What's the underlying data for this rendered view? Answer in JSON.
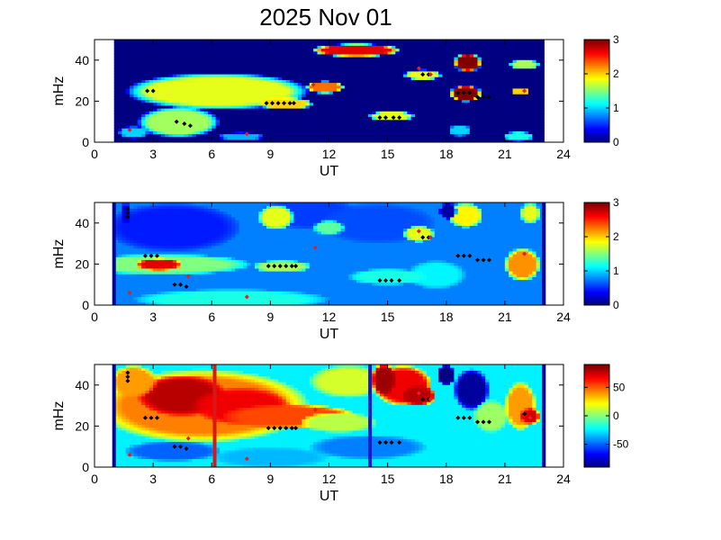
{
  "title": "2025 Nov 01",
  "colors": {
    "background": "#ffffff",
    "frame": "#000000",
    "marker_black": "#000000",
    "marker_red": "#e02020",
    "edge_bar_blue": "#00008f",
    "line_red": "#d81818",
    "line_blue": "#1818c8"
  },
  "chart_data": [
    {
      "type": "heatmap",
      "name": "panel-1",
      "xlabel": "UT",
      "ylabel": "mHz",
      "xlim": [
        0,
        24
      ],
      "ylim": [
        0,
        50
      ],
      "xticks": [
        "0",
        "3",
        "6",
        "9",
        "12",
        "15",
        "18",
        "21",
        "24"
      ],
      "yticks": [
        "0",
        "20",
        "40"
      ],
      "data_x_range": [
        1.0,
        23.0
      ],
      "colormap": "jet",
      "color_range": [
        0,
        3
      ],
      "colorbar_ticks": [
        "0",
        "1",
        "2",
        "3"
      ],
      "background_value": 0.0,
      "features": [
        {
          "shape": "blob",
          "x": 6.3,
          "y": 25,
          "rx": 3.9,
          "ry": 6.5,
          "v": 3.0
        },
        {
          "shape": "blob",
          "x": 4.3,
          "y": 10,
          "rx": 1.5,
          "ry": 5.5,
          "v": 3.0
        },
        {
          "shape": "blob",
          "x": 4.3,
          "y": 10,
          "rx": 2.1,
          "ry": 7.5,
          "v": 1.6
        },
        {
          "shape": "blob",
          "x": 6.3,
          "y": 25,
          "rx": 4.7,
          "ry": 9.0,
          "v": 1.8
        },
        {
          "shape": "blob",
          "x": 9.8,
          "y": 19,
          "rx": 1.4,
          "ry": 3.0,
          "v": 2.0
        },
        {
          "shape": "blob",
          "x": 11.8,
          "y": 27,
          "rx": 1.0,
          "ry": 3.0,
          "v": 2.3
        },
        {
          "shape": "blob",
          "x": 13.4,
          "y": 45,
          "rx": 2.3,
          "ry": 3.2,
          "v": 2.7
        },
        {
          "shape": "blob",
          "x": 19.1,
          "y": 39,
          "rx": 0.7,
          "ry": 4.5,
          "v": 3.0
        },
        {
          "shape": "blob",
          "x": 19.0,
          "y": 24,
          "rx": 0.8,
          "ry": 4.0,
          "v": 3.0
        },
        {
          "shape": "blob",
          "x": 15.2,
          "y": 13,
          "rx": 1.2,
          "ry": 2.5,
          "v": 1.8
        },
        {
          "shape": "blob",
          "x": 16.8,
          "y": 33,
          "rx": 1.0,
          "ry": 2.5,
          "v": 1.8
        },
        {
          "shape": "blob",
          "x": 22.0,
          "y": 38,
          "rx": 0.8,
          "ry": 2.5,
          "v": 1.6
        },
        {
          "shape": "blob",
          "x": 21.8,
          "y": 25,
          "rx": 0.5,
          "ry": 2.0,
          "v": 2.0
        },
        {
          "shape": "blob",
          "x": 2.0,
          "y": 5,
          "rx": 0.8,
          "ry": 3.0,
          "v": 1.0
        },
        {
          "shape": "blob",
          "x": 18.7,
          "y": 6,
          "rx": 0.6,
          "ry": 3.0,
          "v": 1.0
        },
        {
          "shape": "blob",
          "x": 21.7,
          "y": 3,
          "rx": 0.8,
          "ry": 2.5,
          "v": 1.2
        },
        {
          "shape": "blob",
          "x": 7.5,
          "y": 3,
          "rx": 1.2,
          "ry": 2.0,
          "v": 0.9
        }
      ],
      "markers": [
        {
          "color": "black",
          "points": [
            [
              2.7,
              25
            ],
            [
              3.0,
              25
            ],
            [
              4.2,
              10
            ],
            [
              4.6,
              9
            ],
            [
              4.9,
              8
            ],
            [
              8.8,
              19
            ],
            [
              9.1,
              19
            ],
            [
              9.4,
              19
            ],
            [
              9.7,
              19
            ],
            [
              10.0,
              19
            ],
            [
              10.2,
              19
            ],
            [
              14.6,
              12
            ],
            [
              14.9,
              12
            ],
            [
              15.3,
              12
            ],
            [
              15.6,
              12
            ],
            [
              16.8,
              33
            ],
            [
              17.1,
              33
            ],
            [
              18.6,
              24
            ],
            [
              18.9,
              24
            ],
            [
              19.2,
              24
            ],
            [
              19.6,
              22
            ],
            [
              19.9,
              22
            ],
            [
              20.2,
              22
            ]
          ]
        },
        {
          "color": "red",
          "points": [
            [
              1.8,
              6
            ],
            [
              7.8,
              4
            ],
            [
              11.2,
              28
            ],
            [
              16.6,
              36
            ],
            [
              17.2,
              33
            ],
            [
              22.0,
              25
            ]
          ]
        }
      ]
    },
    {
      "type": "heatmap",
      "name": "panel-2",
      "xlabel": "UT",
      "ylabel": "mHz",
      "xlim": [
        0,
        24
      ],
      "ylim": [
        0,
        50
      ],
      "xticks": [
        "0",
        "3",
        "6",
        "9",
        "12",
        "15",
        "18",
        "21",
        "24"
      ],
      "yticks": [
        "0",
        "20",
        "40"
      ],
      "data_x_range": [
        1.0,
        23.0
      ],
      "colormap": "jet",
      "color_range": [
        0,
        3
      ],
      "colorbar_ticks": [
        "0",
        "1",
        "2",
        "3"
      ],
      "background_value": 0.75,
      "features": [
        {
          "shape": "blob",
          "x": 4.0,
          "y": 38,
          "rx": 3.5,
          "ry": 12.0,
          "v": 0.45
        },
        {
          "shape": "blob",
          "x": 11.0,
          "y": 45,
          "rx": 2.5,
          "ry": 8.0,
          "v": 0.55
        },
        {
          "shape": "blob",
          "x": 14.5,
          "y": 40,
          "rx": 3.0,
          "ry": 10.0,
          "v": 0.6
        },
        {
          "shape": "blob",
          "x": 7.0,
          "y": 3,
          "rx": 5.0,
          "ry": 5.0,
          "v": 1.2
        },
        {
          "shape": "blob",
          "x": 3.5,
          "y": 20,
          "rx": 4.5,
          "ry": 5.0,
          "v": 1.5
        },
        {
          "shape": "blob",
          "x": 3.3,
          "y": 20,
          "rx": 1.2,
          "ry": 3.0,
          "v": 2.7
        },
        {
          "shape": "blob",
          "x": 9.3,
          "y": 43,
          "rx": 0.9,
          "ry": 6.0,
          "v": 1.8
        },
        {
          "shape": "blob",
          "x": 9.6,
          "y": 19,
          "rx": 1.5,
          "ry": 3.0,
          "v": 1.6
        },
        {
          "shape": "blob",
          "x": 12.0,
          "y": 38,
          "rx": 0.8,
          "ry": 3.5,
          "v": 1.4
        },
        {
          "shape": "blob",
          "x": 19.0,
          "y": 44,
          "rx": 0.9,
          "ry": 6.0,
          "v": 1.9
        },
        {
          "shape": "blob",
          "x": 16.6,
          "y": 35,
          "rx": 0.8,
          "ry": 4.0,
          "v": 1.8
        },
        {
          "shape": "blob",
          "x": 21.9,
          "y": 20,
          "rx": 0.9,
          "ry": 8.0,
          "v": 2.2
        },
        {
          "shape": "blob",
          "x": 22.3,
          "y": 45,
          "rx": 0.5,
          "ry": 5.0,
          "v": 1.8
        },
        {
          "shape": "blob",
          "x": 18.1,
          "y": 46,
          "rx": 0.45,
          "ry": 4.0,
          "v": 0.1
        },
        {
          "shape": "blob",
          "x": 1.6,
          "y": 45,
          "rx": 0.3,
          "ry": 5.0,
          "v": 0.3
        },
        {
          "shape": "blob",
          "x": 17.5,
          "y": 15,
          "rx": 1.5,
          "ry": 7.0,
          "v": 1.1
        },
        {
          "shape": "blob",
          "x": 15.0,
          "y": 14,
          "rx": 2.0,
          "ry": 4.0,
          "v": 1.2
        }
      ],
      "edge_bars": [
        1.0,
        23.0
      ],
      "markers": [
        {
          "color": "black",
          "points": [
            [
              1.7,
              43
            ],
            [
              1.7,
              45
            ],
            [
              1.7,
              47
            ],
            [
              2.6,
              24
            ],
            [
              2.9,
              24
            ],
            [
              3.2,
              24
            ],
            [
              4.1,
              10
            ],
            [
              4.4,
              10
            ],
            [
              4.7,
              9
            ],
            [
              8.9,
              19
            ],
            [
              9.2,
              19
            ],
            [
              9.5,
              19
            ],
            [
              9.8,
              19
            ],
            [
              10.1,
              19
            ],
            [
              10.3,
              19
            ],
            [
              14.6,
              12
            ],
            [
              14.9,
              12
            ],
            [
              15.2,
              12
            ],
            [
              15.6,
              12
            ],
            [
              16.8,
              33
            ],
            [
              17.1,
              33
            ],
            [
              18.6,
              24
            ],
            [
              18.9,
              24
            ],
            [
              19.2,
              24
            ],
            [
              19.6,
              22
            ],
            [
              19.9,
              22
            ],
            [
              20.2,
              22
            ]
          ]
        },
        {
          "color": "red",
          "points": [
            [
              1.8,
              6
            ],
            [
              4.8,
              14
            ],
            [
              7.8,
              4
            ],
            [
              11.3,
              28
            ],
            [
              16.6,
              36
            ],
            [
              17.2,
              33
            ],
            [
              22.0,
              25
            ]
          ]
        }
      ]
    },
    {
      "type": "heatmap",
      "name": "panel-3",
      "xlabel": "UT",
      "ylabel": "mHz",
      "xlim": [
        0,
        24
      ],
      "ylim": [
        0,
        50
      ],
      "xticks": [
        "0",
        "3",
        "6",
        "9",
        "12",
        "15",
        "18",
        "21",
        "24"
      ],
      "yticks": [
        "0",
        "20",
        "40"
      ],
      "data_x_range": [
        1.0,
        23.0
      ],
      "colormap": "jet",
      "color_range": [
        -90,
        90
      ],
      "colorbar_ticks": [
        "-50",
        "0",
        "50"
      ],
      "colorbar_tick_values": [
        -50,
        0,
        50
      ],
      "background_value": -25,
      "features": [
        {
          "shape": "blob",
          "x": 5.5,
          "y": 30,
          "rx": 5.5,
          "ry": 18.0,
          "v": 45
        },
        {
          "shape": "blob",
          "x": 4.5,
          "y": 35,
          "rx": 2.3,
          "ry": 10.0,
          "v": 80
        },
        {
          "shape": "blob",
          "x": 7.5,
          "y": 30,
          "rx": 2.5,
          "ry": 9.0,
          "v": 70
        },
        {
          "shape": "blob",
          "x": 10.0,
          "y": 25,
          "rx": 3.5,
          "ry": 6.0,
          "v": 55
        },
        {
          "shape": "blob",
          "x": 2.0,
          "y": 42,
          "rx": 1.2,
          "ry": 8.0,
          "v": 40
        },
        {
          "shape": "blob",
          "x": 13.0,
          "y": 42,
          "rx": 2.0,
          "ry": 8.0,
          "v": 15
        },
        {
          "shape": "blob",
          "x": 15.8,
          "y": 40,
          "rx": 1.5,
          "ry": 10.0,
          "v": 70
        },
        {
          "shape": "blob",
          "x": 14.8,
          "y": 43,
          "rx": 0.6,
          "ry": 8.0,
          "v": 85
        },
        {
          "shape": "blob",
          "x": 16.6,
          "y": 35,
          "rx": 0.9,
          "ry": 5.0,
          "v": 80
        },
        {
          "shape": "blob",
          "x": 19.3,
          "y": 38,
          "rx": 0.9,
          "ry": 10.0,
          "v": -85
        },
        {
          "shape": "blob",
          "x": 18.0,
          "y": 45,
          "rx": 0.5,
          "ry": 5.0,
          "v": -90
        },
        {
          "shape": "blob",
          "x": 20.3,
          "y": 25,
          "rx": 0.9,
          "ry": 8.0,
          "v": 5
        },
        {
          "shape": "blob",
          "x": 21.8,
          "y": 30,
          "rx": 0.8,
          "ry": 12.0,
          "v": 40
        },
        {
          "shape": "blob",
          "x": 22.3,
          "y": 25,
          "rx": 0.5,
          "ry": 4.0,
          "v": 75
        },
        {
          "shape": "blob",
          "x": 4.0,
          "y": 8,
          "rx": 2.5,
          "ry": 5.0,
          "v": -50
        },
        {
          "shape": "blob",
          "x": 9.0,
          "y": 5,
          "rx": 3.0,
          "ry": 5.0,
          "v": -35
        },
        {
          "shape": "blob",
          "x": 14.0,
          "y": 10,
          "rx": 3.0,
          "ry": 6.0,
          "v": -45
        },
        {
          "shape": "blob",
          "x": 12.5,
          "y": 22,
          "rx": 2.0,
          "ry": 5.0,
          "v": 10
        }
      ],
      "vertical_lines": [
        {
          "x": 6.15,
          "color": "red"
        },
        {
          "x": 14.1,
          "color": "blue"
        }
      ],
      "edge_bars": [
        1.0,
        23.0
      ],
      "markers": [
        {
          "color": "black",
          "points": [
            [
              1.7,
              42
            ],
            [
              1.7,
              44
            ],
            [
              1.7,
              46
            ],
            [
              2.6,
              24
            ],
            [
              2.9,
              24
            ],
            [
              3.2,
              24
            ],
            [
              4.1,
              10
            ],
            [
              4.4,
              10
            ],
            [
              4.7,
              9
            ],
            [
              8.9,
              19
            ],
            [
              9.2,
              19
            ],
            [
              9.5,
              19
            ],
            [
              9.8,
              19
            ],
            [
              10.1,
              19
            ],
            [
              10.3,
              19
            ],
            [
              14.6,
              12
            ],
            [
              14.9,
              12
            ],
            [
              15.2,
              12
            ],
            [
              15.6,
              12
            ],
            [
              16.8,
              33
            ],
            [
              17.1,
              33
            ],
            [
              18.6,
              24
            ],
            [
              18.9,
              24
            ],
            [
              19.2,
              24
            ],
            [
              19.6,
              22
            ],
            [
              19.9,
              22
            ],
            [
              20.2,
              22
            ],
            [
              22.0,
              26
            ]
          ]
        },
        {
          "color": "red",
          "points": [
            [
              1.8,
              6
            ],
            [
              4.8,
              14
            ],
            [
              7.8,
              4
            ],
            [
              11.3,
              28
            ],
            [
              16.6,
              36
            ],
            [
              17.2,
              33
            ],
            [
              22.3,
              24
            ]
          ]
        }
      ]
    }
  ]
}
